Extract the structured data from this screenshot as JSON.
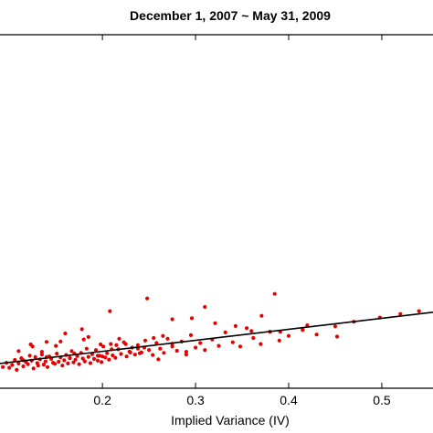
{
  "chart_data": {
    "type": "scatter",
    "title": "December 1, 2007 ~ May 31, 2009",
    "xlabel": "Implied Variance (IV)",
    "ylabel": "",
    "xlim": [
      0.09,
      0.555
    ],
    "ylim": [
      0.0,
      1.0
    ],
    "x_ticks": [
      0.2,
      0.3,
      0.4,
      0.5
    ],
    "x_tick_labels": [
      "0.2",
      "0.3",
      "0.4",
      "0.5"
    ],
    "grid": false,
    "marker_color": "#e60000",
    "fit_line_color": "#000000",
    "fit_line": {
      "x": [
        0.09,
        0.555
      ],
      "y": [
        0.07,
        0.215
      ]
    },
    "series": [
      {
        "x": [
          0.093,
          0.097,
          0.1,
          0.103,
          0.106,
          0.108,
          0.11,
          0.113,
          0.115,
          0.118,
          0.12,
          0.122,
          0.124,
          0.126,
          0.128,
          0.13,
          0.131,
          0.133,
          0.135,
          0.137,
          0.139,
          0.141,
          0.143,
          0.145,
          0.147,
          0.149,
          0.151,
          0.153,
          0.155,
          0.157,
          0.159,
          0.161,
          0.163,
          0.165,
          0.167,
          0.169,
          0.171,
          0.173,
          0.175,
          0.177,
          0.179,
          0.181,
          0.183,
          0.185,
          0.187,
          0.189,
          0.191,
          0.193,
          0.195,
          0.197,
          0.199,
          0.201,
          0.203,
          0.205,
          0.207,
          0.209,
          0.211,
          0.214,
          0.217,
          0.22,
          0.223,
          0.226,
          0.229,
          0.232,
          0.235,
          0.238,
          0.242,
          0.246,
          0.25,
          0.254,
          0.258,
          0.262,
          0.266,
          0.27,
          0.275,
          0.28,
          0.285,
          0.29,
          0.295,
          0.3,
          0.305,
          0.31,
          0.318,
          0.325,
          0.332,
          0.34,
          0.348,
          0.355,
          0.362,
          0.37,
          0.38,
          0.39,
          0.4,
          0.415,
          0.43,
          0.45,
          0.47,
          0.498,
          0.52,
          0.54,
          0.11,
          0.125,
          0.14,
          0.155,
          0.17,
          0.185,
          0.2,
          0.215,
          0.23,
          0.245,
          0.26,
          0.275,
          0.29,
          0.115,
          0.135,
          0.15,
          0.165,
          0.18,
          0.195,
          0.21,
          0.225,
          0.24,
          0.255,
          0.14,
          0.16,
          0.178,
          0.198,
          0.218,
          0.238,
          0.265,
          0.296,
          0.321,
          0.343,
          0.371,
          0.391,
          0.123,
          0.208,
          0.248,
          0.275,
          0.31,
          0.36,
          0.385,
          0.42,
          0.452
        ],
        "y": [
          0.06,
          0.072,
          0.058,
          0.066,
          0.08,
          0.052,
          0.07,
          0.085,
          0.062,
          0.074,
          0.068,
          0.092,
          0.078,
          0.056,
          0.088,
          0.071,
          0.064,
          0.082,
          0.095,
          0.067,
          0.076,
          0.06,
          0.09,
          0.083,
          0.072,
          0.069,
          0.098,
          0.075,
          0.087,
          0.064,
          0.079,
          0.094,
          0.07,
          0.085,
          0.105,
          0.073,
          0.081,
          0.091,
          0.068,
          0.1,
          0.084,
          0.076,
          0.112,
          0.089,
          0.071,
          0.096,
          0.083,
          0.108,
          0.078,
          0.092,
          0.074,
          0.118,
          0.087,
          0.099,
          0.081,
          0.125,
          0.093,
          0.086,
          0.11,
          0.097,
          0.13,
          0.09,
          0.104,
          0.115,
          0.095,
          0.122,
          0.101,
          0.135,
          0.108,
          0.094,
          0.128,
          0.112,
          0.1,
          0.14,
          0.118,
          0.106,
          0.132,
          0.103,
          0.15,
          0.115,
          0.128,
          0.108,
          0.138,
          0.12,
          0.158,
          0.13,
          0.118,
          0.17,
          0.142,
          0.125,
          0.16,
          0.135,
          0.148,
          0.165,
          0.152,
          0.175,
          0.188,
          0.2,
          0.21,
          0.218,
          0.105,
          0.118,
          0.088,
          0.132,
          0.098,
          0.145,
          0.09,
          0.122,
          0.101,
          0.115,
          0.082,
          0.126,
          0.095,
          0.079,
          0.103,
          0.12,
          0.086,
          0.138,
          0.092,
          0.11,
          0.125,
          0.099,
          0.142,
          0.131,
          0.155,
          0.167,
          0.124,
          0.14,
          0.112,
          0.148,
          0.198,
          0.184,
          0.176,
          0.205,
          0.16,
          0.124,
          0.218,
          0.254,
          0.195,
          0.23,
          0.162,
          0.267,
          0.178,
          0.146
        ]
      }
    ]
  }
}
